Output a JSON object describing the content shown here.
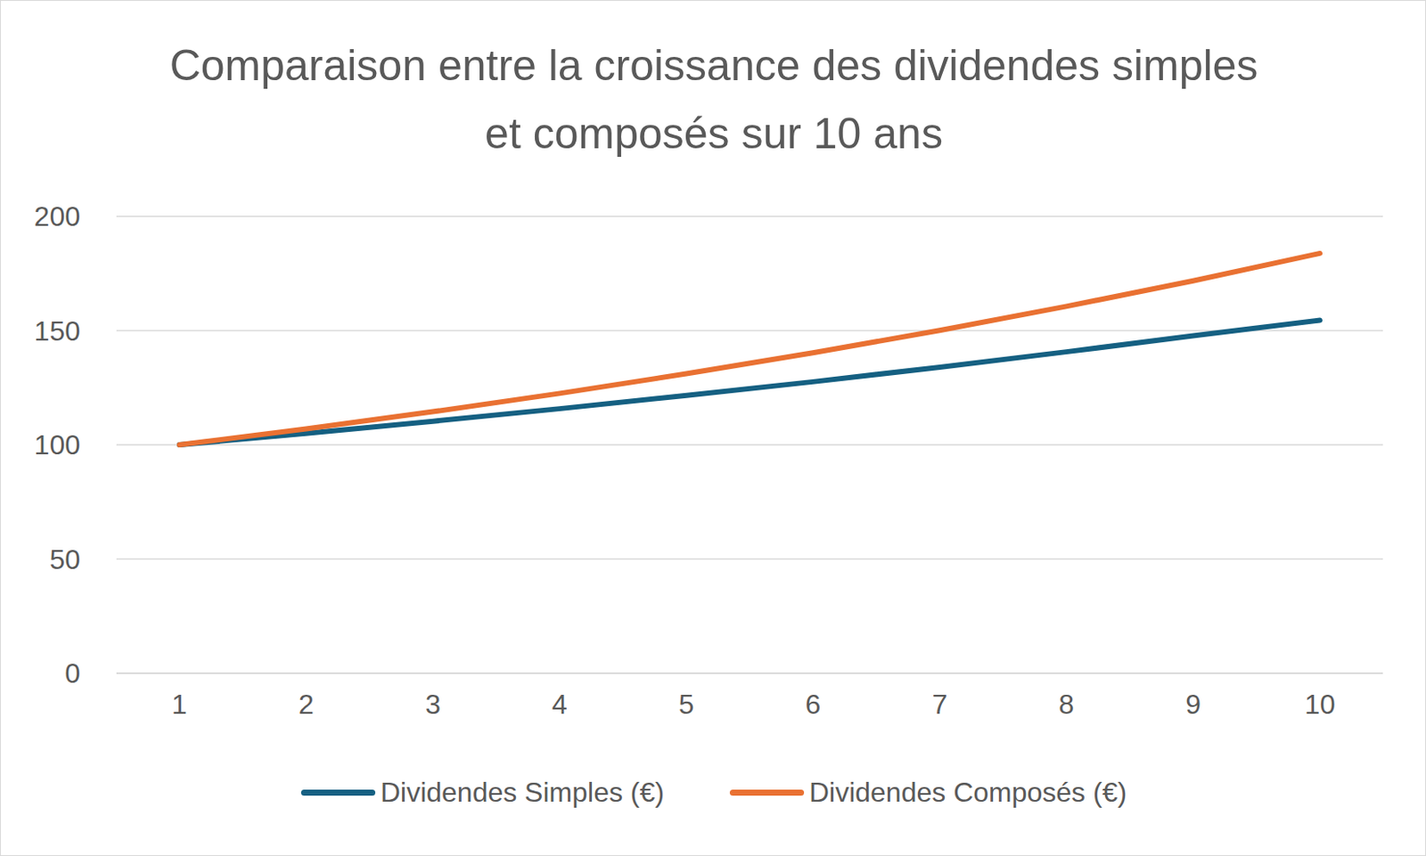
{
  "chart_data": {
    "type": "line",
    "title": "Comparaison entre la croissance des dividendes simples et composés sur 10 ans",
    "categories": [
      "1",
      "2",
      "3",
      "4",
      "5",
      "6",
      "7",
      "8",
      "9",
      "10"
    ],
    "series": [
      {
        "name": "Dividendes Simples (€)",
        "color": "#156082",
        "values": [
          100,
          105,
          110.3,
          115.8,
          121.6,
          127.6,
          134,
          140.7,
          147.7,
          154.5
        ]
      },
      {
        "name": "Dividendes Composés (€)",
        "color": "#e97132",
        "values": [
          100,
          107,
          114.5,
          122.5,
          131.1,
          140.3,
          150.1,
          160.6,
          171.8,
          183.8
        ]
      }
    ],
    "ylim": [
      0,
      200
    ],
    "yticks": [
      0,
      50,
      100,
      150,
      200
    ],
    "grid": true,
    "legend": "bottom"
  }
}
